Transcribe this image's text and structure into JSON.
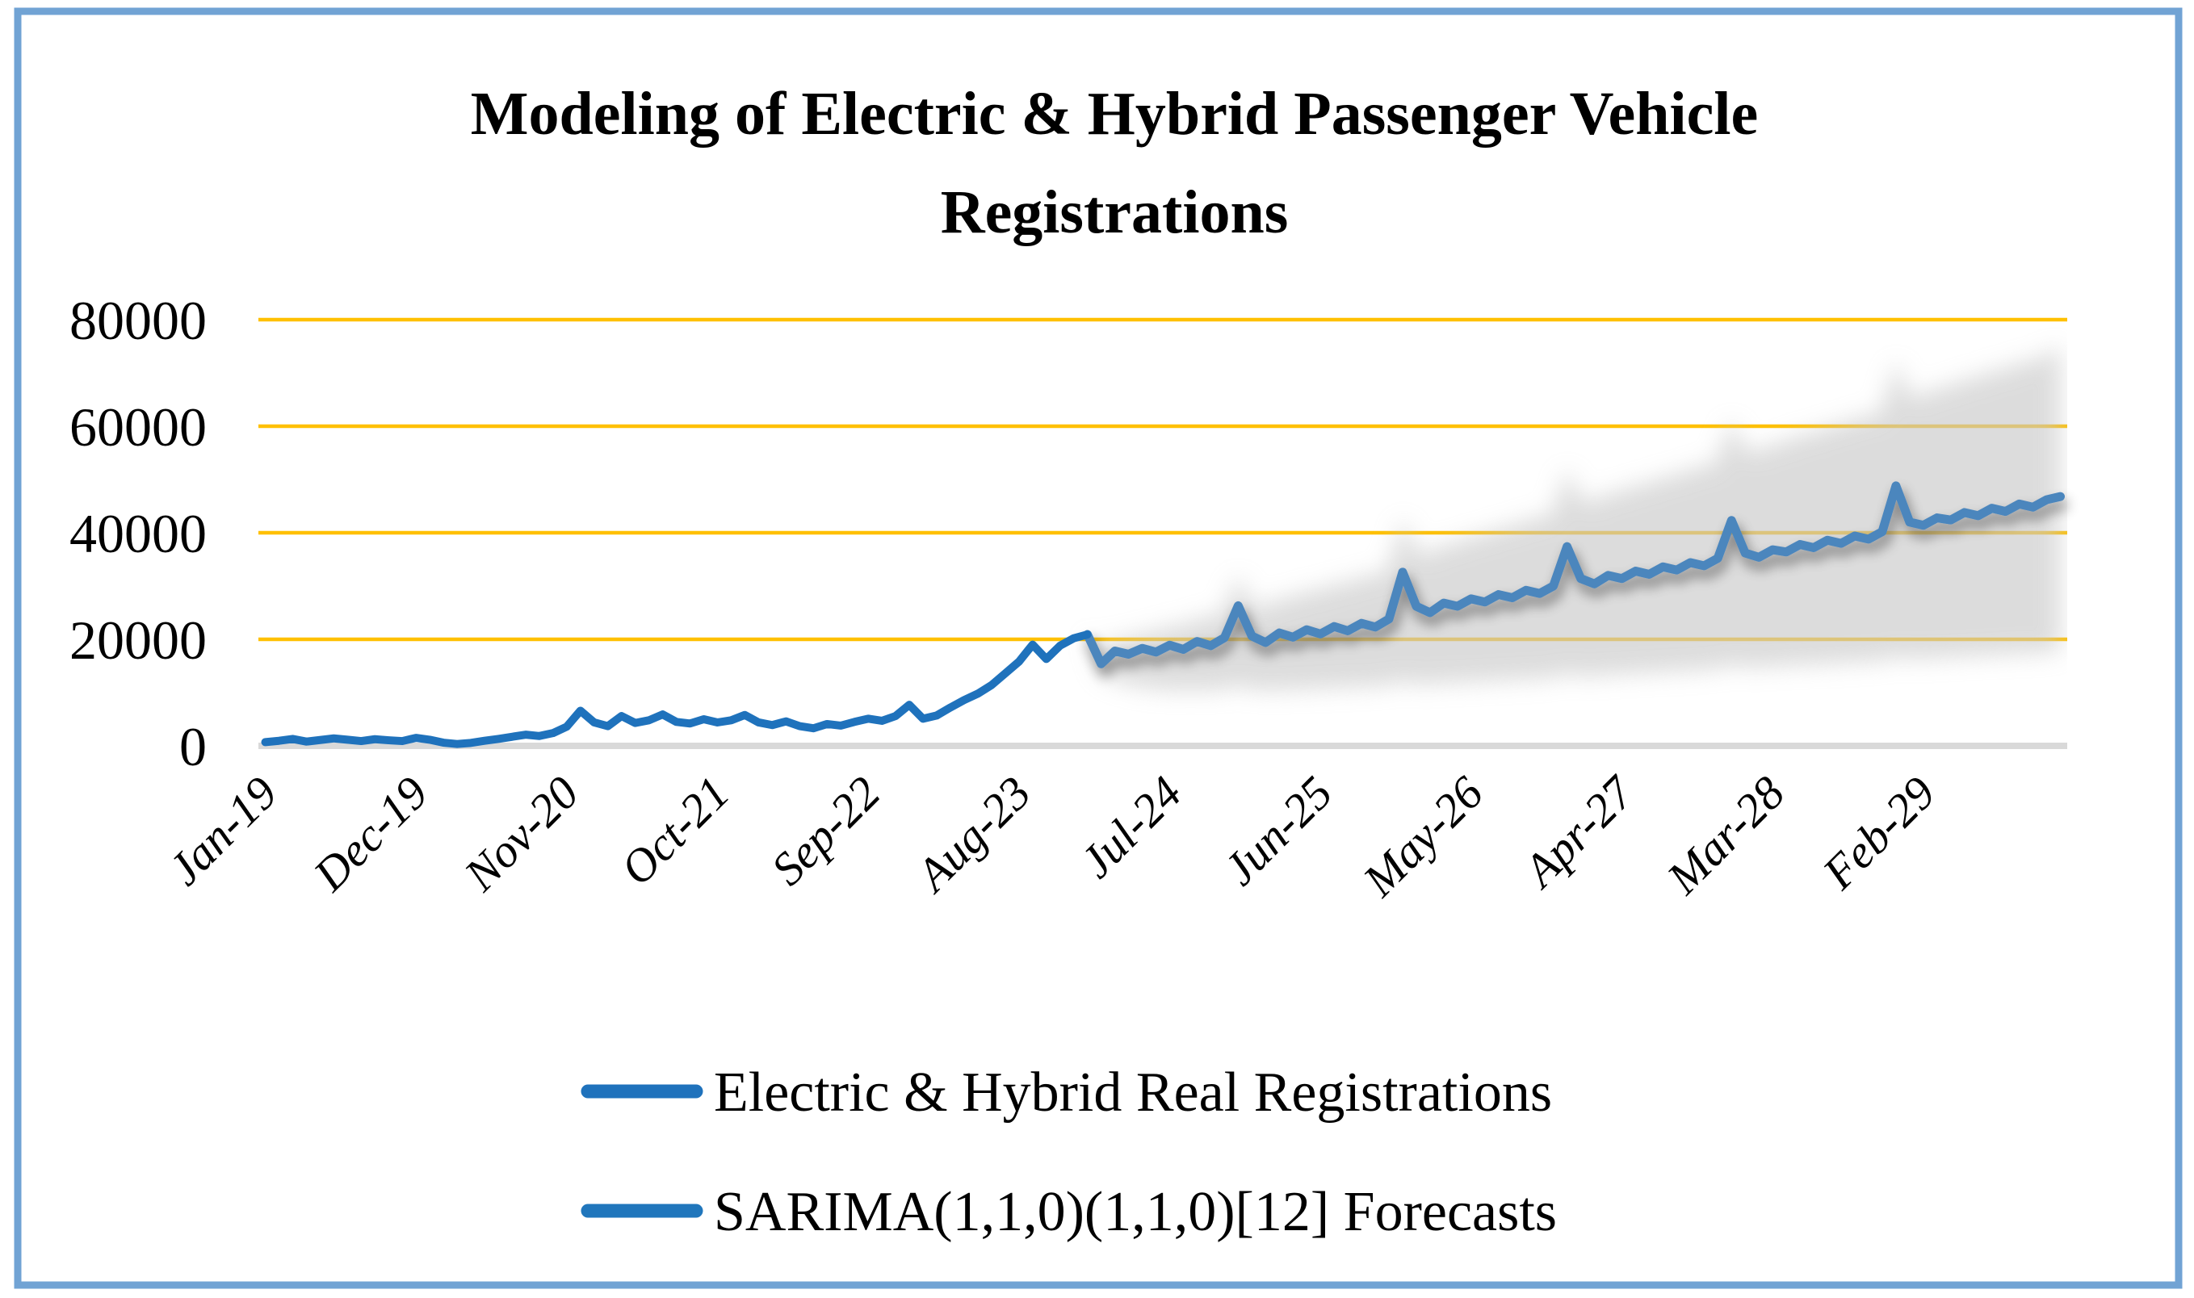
{
  "window": {
    "border_color": "#71A3D4",
    "background_color": "#FFFFFF"
  },
  "title": {
    "line1": "Modeling of Electric & Hybrid Passenger Vehicle",
    "line2": "Registrations"
  },
  "legend": {
    "items": [
      {
        "label": "Electric & Hybrid Real Registrations",
        "swatch_color": "#1F72BC",
        "swatch": "line"
      },
      {
        "label": "SARIMA(1,1,0)(1,1,0)[12] Forecasts",
        "swatch_color": "#2076BC",
        "swatch": "line"
      }
    ]
  },
  "chart_data": {
    "type": "line",
    "title": "Modeling of Electric & Hybrid Passenger Vehicle Registrations",
    "xlabel": "",
    "ylabel": "",
    "ylim": [
      0,
      80000
    ],
    "y_ticks": [
      0,
      20000,
      40000,
      60000,
      80000
    ],
    "y_tick_labels": [
      "0",
      "20000",
      "40000",
      "60000",
      "80000"
    ],
    "x_tick_labels": [
      "Jan-19",
      "Dec-19",
      "Nov-20",
      "Oct-21",
      "Sep-22",
      "Aug-23",
      "Jul-24",
      "Jun-25",
      "May-26",
      "Apr-27",
      "Mar-28",
      "Feb-29"
    ],
    "x_tick_interval_months": 11,
    "total_points": 132,
    "grid": "horizontal",
    "gridline_color": "#FFC000",
    "zero_axis_color": "#D9D9D9",
    "legend_position": "bottom",
    "series": [
      {
        "name": "Electric & Hybrid Real Registrations",
        "color": "#1F72BC",
        "start_index": 0,
        "values": [
          700,
          950,
          1300,
          800,
          1100,
          1400,
          1150,
          900,
          1250,
          1050,
          900,
          1500,
          1150,
          600,
          350,
          550,
          950,
          1300,
          1700,
          2100,
          1850,
          2400,
          3600,
          6600,
          4400,
          3700,
          5600,
          4300,
          4800,
          5900,
          4500,
          4200,
          5000,
          4400,
          4800,
          5800,
          4400,
          3900,
          4600,
          3700,
          3300,
          4100,
          3800,
          4500,
          5100,
          4700,
          5600,
          7700,
          5100,
          5700,
          7200,
          8600,
          9800,
          11400,
          13600,
          15800,
          19000,
          16300,
          18800,
          20200,
          20900
        ]
      },
      {
        "name": "SARIMA(1,1,0)(1,1,0)[12] Forecasts",
        "color": "#4C86BD",
        "start_index": 60,
        "values": [
          20900,
          15400,
          17800,
          17200,
          18300,
          17600,
          18900,
          18100,
          19600,
          18800,
          20300,
          26300,
          20600,
          19400,
          21200,
          20400,
          21800,
          21000,
          22400,
          21600,
          23000,
          22300,
          23800,
          32600,
          26200,
          25000,
          26800,
          26200,
          27600,
          27000,
          28400,
          27800,
          29200,
          28600,
          30000,
          37400,
          31400,
          30400,
          32000,
          31400,
          32800,
          32200,
          33600,
          33000,
          34400,
          33800,
          35200,
          42300,
          36200,
          35400,
          36800,
          36400,
          37800,
          37200,
          38600,
          38000,
          39400,
          38800,
          40200,
          48800,
          42000,
          41400,
          42800,
          42400,
          43800,
          43200,
          44600,
          44000,
          45400,
          44800,
          46200,
          46800
        ]
      }
    ],
    "confidence_band": {
      "name": "Forecast confidence interval",
      "color": "#C8C8C8",
      "start_index": 60,
      "upper": [
        21300,
        17400,
        20200,
        19900,
        21400,
        21100,
        22800,
        22300,
        24200,
        23800,
        25600,
        32000,
        26700,
        25800,
        28000,
        27600,
        29400,
        28900,
        30700,
        30300,
        32000,
        31700,
        33600,
        42700,
        36700,
        35900,
        38100,
        37800,
        39600,
        39400,
        41100,
        40900,
        42700,
        42400,
        44200,
        52000,
        46400,
        45700,
        47700,
        47500,
        49200,
        49000,
        50800,
        50500,
        52300,
        52100,
        53900,
        61300,
        55600,
        55200,
        56900,
        56900,
        58700,
        58400,
        60200,
        60000,
        61800,
        61500,
        63300,
        72300,
        65800,
        65600,
        67400,
        67300,
        69100,
        68900,
        70700,
        70400,
        72200,
        72000,
        73700,
        74700
      ],
      "lower": [
        20900,
        13500,
        12200,
        11500,
        11000,
        10700,
        10500,
        10400,
        10500,
        10400,
        10700,
        11300,
        10700,
        10300,
        10600,
        10500,
        10800,
        10700,
        11000,
        10900,
        11200,
        11100,
        11500,
        12100,
        11600,
        11500,
        11900,
        11800,
        12100,
        12000,
        12400,
        12300,
        12600,
        12500,
        12900,
        13500,
        13100,
        13000,
        13400,
        13400,
        13700,
        13600,
        14000,
        13900,
        14200,
        14200,
        14500,
        15200,
        14800,
        14700,
        15000,
        15000,
        15300,
        15200,
        15500,
        15500,
        15800,
        15700,
        16000,
        16700,
        16400,
        16300,
        16600,
        16600,
        16900,
        16800,
        17100,
        17100,
        17400,
        17300,
        17600,
        17700
      ]
    }
  }
}
